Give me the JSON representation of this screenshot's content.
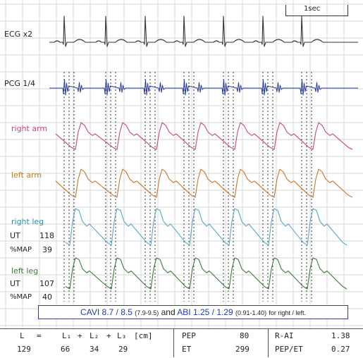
{
  "chart_data": {
    "type": "line",
    "traces": [
      {
        "name": "ECG x2"
      },
      {
        "name": "PCG 1/4"
      },
      {
        "name": "right arm"
      },
      {
        "name": "left arm"
      },
      {
        "name": "right leg"
      },
      {
        "name": "left leg"
      }
    ],
    "scale_label": "1sec",
    "right_leg": {
      "ut_label": "UT",
      "ut_value": "118",
      "map_label": "%MAP",
      "map_value": "39"
    },
    "left_leg": {
      "ut_label": "UT",
      "ut_value": "107",
      "map_label": "%MAP",
      "map_value": "40"
    },
    "grid": true,
    "colors": {
      "ecg": "#333333",
      "pcg": "#2a3a9a",
      "right_arm": "#c8467a",
      "left_arm": "#c8762a",
      "right_leg": "#5aa8c8",
      "left_leg": "#3b7a3b",
      "grid": "#c9c9c9"
    }
  },
  "result": {
    "cavi_label": "CAVI",
    "cavi_values": "8.7 / 8.5",
    "cavi_range": "(7.9-9.5)",
    "and_text": "and",
    "abi_label": "ABI",
    "abi_values": "1.25 / 1.29",
    "abi_range": "(0.91-1.40)",
    "suffix": "for right / left."
  },
  "table": {
    "L_header": "L",
    "eq": "=",
    "L1_header": "L₁",
    "plus1": "+",
    "L2_header": "L₂",
    "plus2": "+",
    "L3_header": "L₃",
    "unit": "[cm]",
    "L": "129",
    "L1": "66",
    "L2": "34",
    "L3": "29",
    "PEP_label": "PEP",
    "PEP": "80",
    "ET_label": "ET",
    "ET": "299",
    "RAI_label": "R-AI",
    "RAI": "1.38",
    "PEPET_label": "PEP/ET",
    "PEPET": "0.27"
  }
}
